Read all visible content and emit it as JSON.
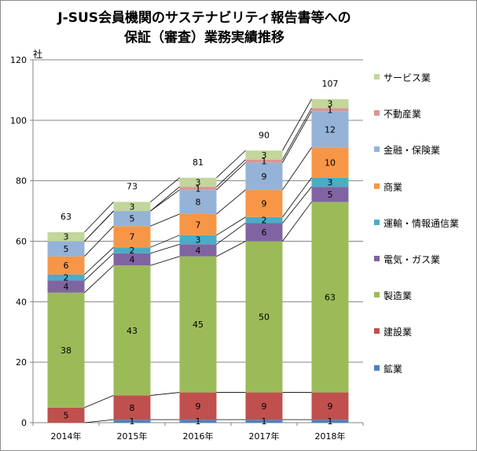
{
  "chart_data": {
    "type": "bar",
    "stacked": true,
    "title_line1": "J-SUS会員機関のサステナビリティ報告書等への",
    "title_line2": "保証（審査）業務実績推移",
    "ylabel": "社",
    "ylim": [
      0,
      120
    ],
    "yticks": [
      0,
      20,
      40,
      60,
      80,
      100,
      120
    ],
    "categories": [
      "2014年",
      "2015年",
      "2016年",
      "2017年",
      "2018年"
    ],
    "totals": [
      63,
      73,
      81,
      90,
      107
    ],
    "grid": true,
    "legend_position": "right",
    "series_lines": true,
    "series": [
      {
        "name": "鉱業",
        "color": "#4F81BD",
        "values": [
          0,
          1,
          1,
          1,
          1
        ]
      },
      {
        "name": "建設業",
        "color": "#C0504D",
        "values": [
          5,
          8,
          9,
          9,
          9
        ]
      },
      {
        "name": "製造業",
        "color": "#9BBB59",
        "values": [
          38,
          43,
          45,
          50,
          63
        ]
      },
      {
        "name": "電気・ガス業",
        "color": "#8064A2",
        "values": [
          4,
          4,
          4,
          6,
          5
        ]
      },
      {
        "name": "運輸・情報通信業",
        "color": "#4BACC6",
        "values": [
          2,
          2,
          3,
          2,
          3
        ]
      },
      {
        "name": "商業",
        "color": "#F79646",
        "values": [
          6,
          7,
          7,
          9,
          10
        ]
      },
      {
        "name": "金融・保険業",
        "color": "#95B3D7",
        "values": [
          5,
          5,
          8,
          9,
          12
        ]
      },
      {
        "name": "不動産業",
        "color": "#D99694",
        "values": [
          0,
          0,
          1,
          1,
          1
        ]
      },
      {
        "name": "サービス業",
        "color": "#C3D69B",
        "values": [
          3,
          3,
          3,
          3,
          3
        ]
      }
    ]
  }
}
